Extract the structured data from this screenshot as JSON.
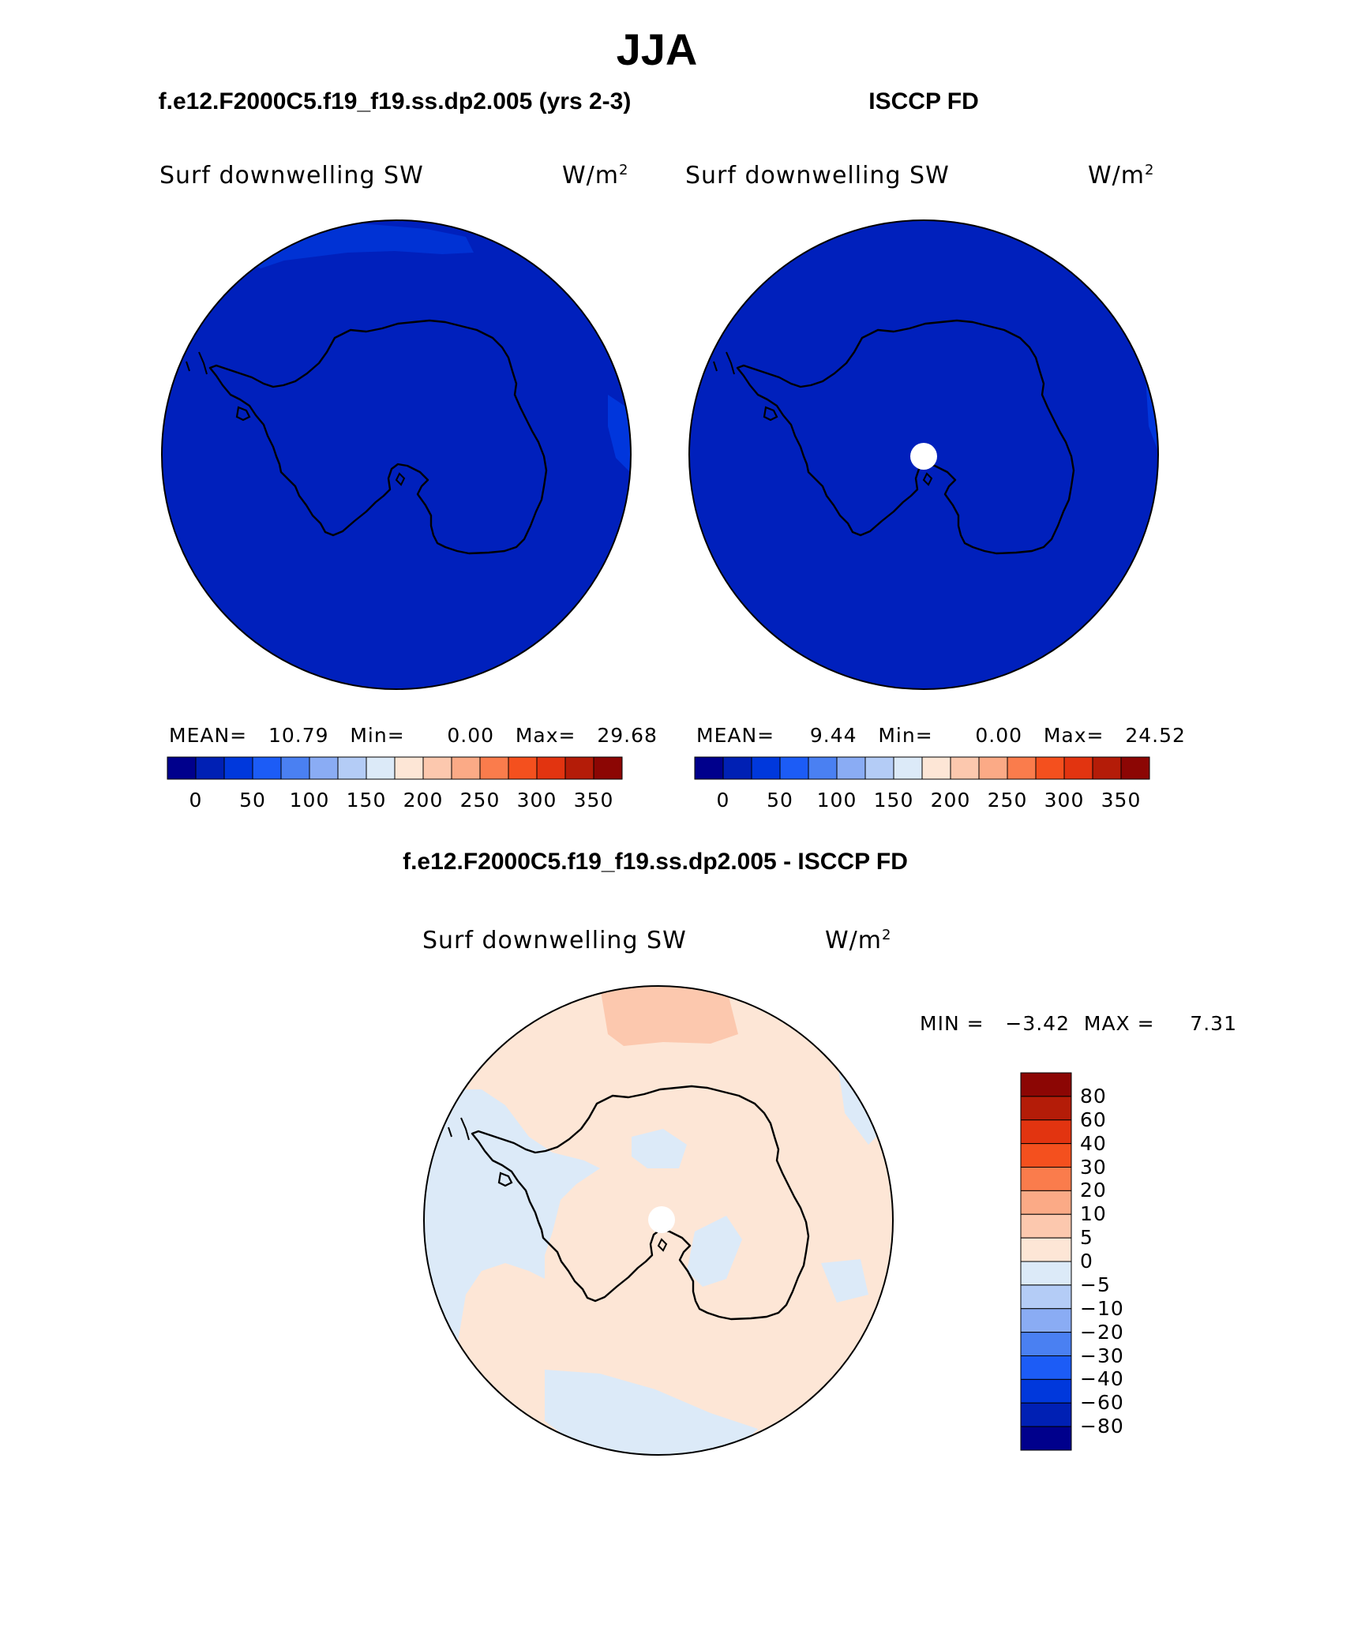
{
  "main_title": "JJA",
  "case_title": "f.e12.F2000C5.f19_f19.ss.dp2.005 (yrs 2-3)",
  "obs_title": "ISCCP FD",
  "diff_title": "f.e12.F2000C5.f19_f19.ss.dp2.005 - ISCCP FD",
  "variable": "Surf downwelling SW",
  "units": "W/m",
  "units_sup": "2",
  "panels": [
    {
      "mean": "MEAN=   10.79   Min=      0.00   Max=   29.68"
    },
    {
      "mean": "MEAN=     9.44   Min=      0.00   Max=   24.52"
    }
  ],
  "diff_stats": "MIN =   −3.42  MAX =     7.31",
  "colorbar_top": {
    "ticks": [
      "0",
      "50",
      "100",
      "150",
      "200",
      "250",
      "300",
      "350"
    ],
    "colors": [
      "#00008c",
      "#0020b4",
      "#0038dc",
      "#1c5cf6",
      "#4a80f2",
      "#8aacf4",
      "#b4ccf6",
      "#dceaf8",
      "#fde6d6",
      "#fcc8ae",
      "#fbaa86",
      "#fa7c4c",
      "#f4501e",
      "#e23410",
      "#b41c08",
      "#8c0604"
    ]
  },
  "colorbar_diff": {
    "ticks": [
      "80",
      "60",
      "40",
      "30",
      "20",
      "10",
      "5",
      "0",
      "−5",
      "−10",
      "−20",
      "−30",
      "−40",
      "−60",
      "−80"
    ],
    "colors": [
      "#8c0604",
      "#b41c08",
      "#e23410",
      "#f4501e",
      "#fa7c4c",
      "#fbaa86",
      "#fcc8ae",
      "#fde6d6",
      "#dceaf8",
      "#b4ccf6",
      "#8aacf4",
      "#4a80f2",
      "#1c5cf6",
      "#0038dc",
      "#0020b4",
      "#00008c"
    ]
  },
  "colors": {
    "map_fill": "#0020bc",
    "map_fill_light": "#0036dc",
    "diff_pos": "#fde6d6",
    "diff_pos_strong": "#fcc8ae",
    "diff_neg": "#dceaf8",
    "coast": "#000000"
  }
}
